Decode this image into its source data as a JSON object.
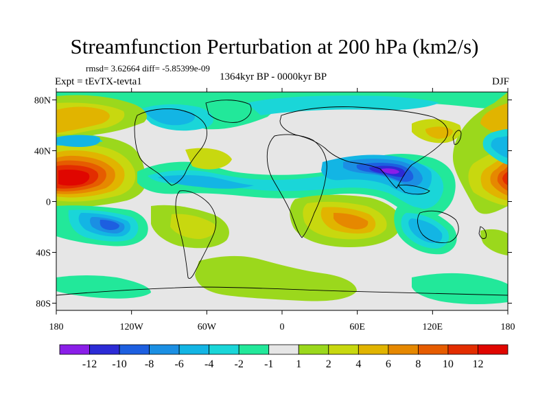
{
  "title": "Streamfunction Perturbation at 200 hPa (km2/s)",
  "stats": "rmsd= 3.62664 diff= -5.85399e-09",
  "experiment": "Expt = tEvTX-tevta1",
  "period": "1364kyr BP - 0000kyr BP",
  "season": "DJF",
  "lat_ticks": [
    "80N",
    "40N",
    "0",
    "40S",
    "80S"
  ],
  "lon_ticks": [
    "180",
    "120W",
    "60W",
    "0",
    "60E",
    "120E",
    "180"
  ],
  "colorbar": {
    "labels": [
      "-12",
      "-10",
      "-8",
      "-6",
      "-4",
      "-2",
      "-1",
      "1",
      "2",
      "4",
      "6",
      "8",
      "10",
      "12"
    ],
    "colors": [
      "#8a1ee8",
      "#2c2bd6",
      "#1d5fe0",
      "#1b8fe3",
      "#13b5e4",
      "#1ad6d8",
      "#22e89a",
      "#e6e6e6",
      "#9bd81c",
      "#c8d80f",
      "#e1b400",
      "#e68800",
      "#e65c00",
      "#e32d00",
      "#e00600"
    ]
  }
}
